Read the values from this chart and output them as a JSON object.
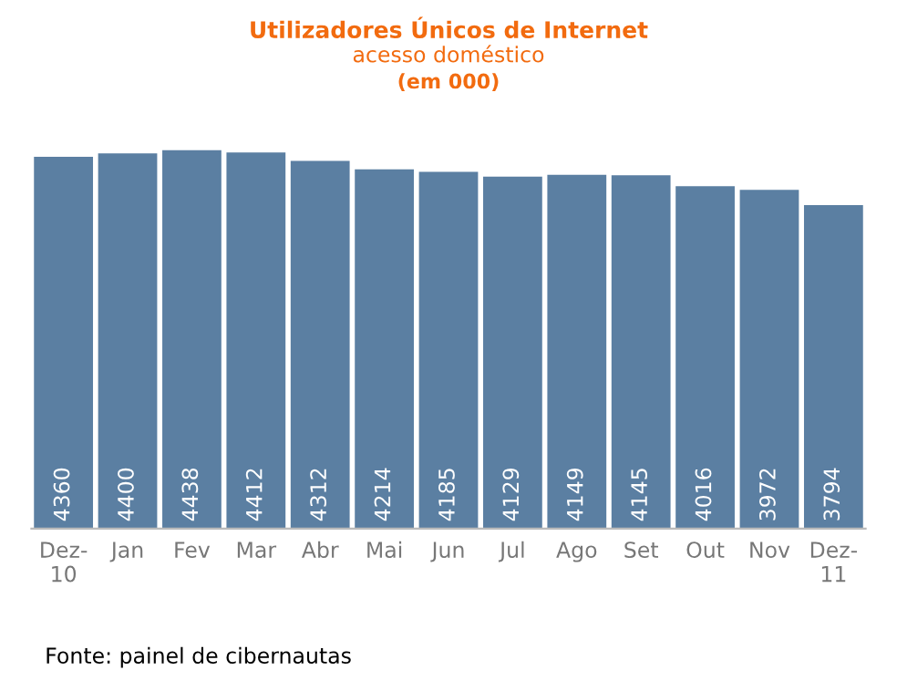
{
  "chart_data": {
    "type": "bar",
    "title": "Utilizadores Únicos de Internet",
    "subtitle": "acesso doméstico",
    "categories": [
      "Dez-\n10",
      "Jan",
      "Fev",
      "Mar",
      "Abr",
      "Mai",
      "Jun",
      "Jul",
      "Ago",
      "Set",
      "Out",
      "Nov",
      "Dez-\n11"
    ],
    "values": [
      4360,
      4400,
      4438,
      4412,
      4312,
      4214,
      4185,
      4129,
      4149,
      4145,
      4016,
      3972,
      3794
    ],
    "color": "#5b7fa2",
    "data_labels": true,
    "grid": false,
    "legend": false,
    "annotations": [
      "(em 000)",
      "Fonte: painel de cibernautas"
    ]
  }
}
